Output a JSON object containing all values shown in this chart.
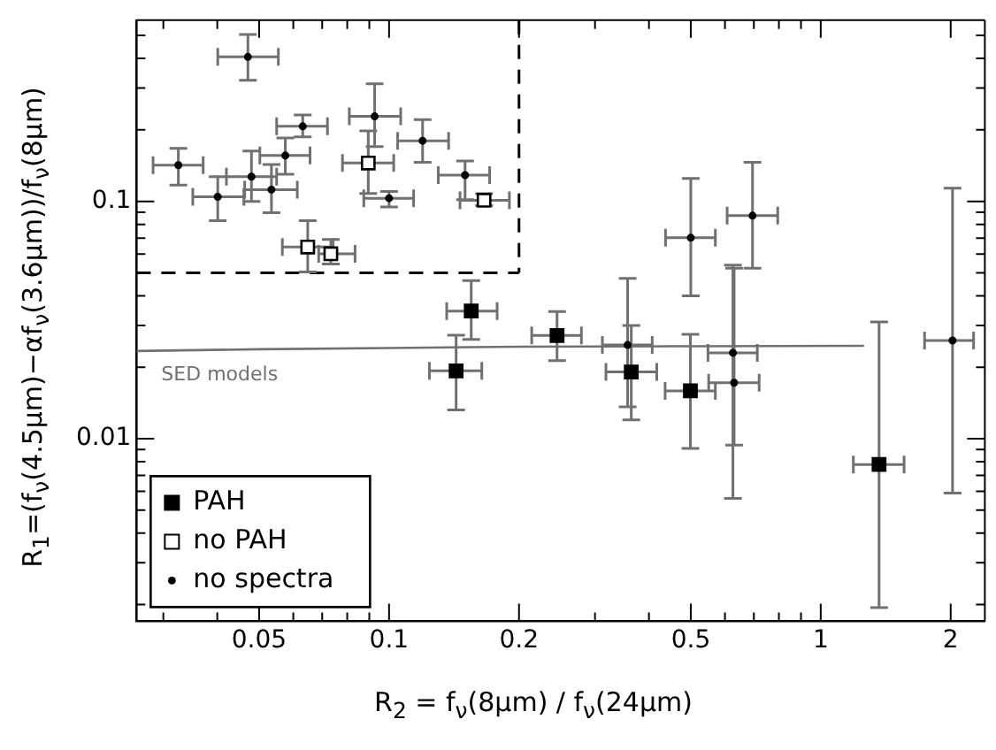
{
  "chart_data": {
    "type": "scatter",
    "xlabel": "R$_{2}$ = f$_{ν}$(8μm) / f$_{ν}$(24μm)",
    "ylabel": "R$_{1}$=(f$_{ν}$(4.5μm)−αf$_{ν}$(3.6μm))/f$_{ν}$(8μm)",
    "log": "xy",
    "xlim": [
      0.026,
      2.4
    ],
    "ylim": [
      0.0017,
      0.58
    ],
    "xticks": [
      {
        "value": 0.03,
        "label": null
      },
      {
        "value": 0.04,
        "label": null
      },
      0.05,
      {
        "value": 0.06,
        "label": null
      },
      {
        "value": 0.07,
        "label": null
      },
      {
        "value": 0.08,
        "label": null
      },
      {
        "value": 0.09,
        "label": null
      },
      0.1,
      0.2,
      {
        "value": 0.3,
        "label": null
      },
      {
        "value": 0.4,
        "label": null
      },
      0.5,
      {
        "value": 0.6,
        "label": null
      },
      {
        "value": 0.7,
        "label": null
      },
      {
        "value": 0.8,
        "label": null
      },
      {
        "value": 0.9,
        "label": null
      },
      1,
      2
    ],
    "yticks": [
      {
        "value": 0.002,
        "label": null
      },
      {
        "value": 0.003,
        "label": null
      },
      {
        "value": 0.004,
        "label": null
      },
      {
        "value": 0.005,
        "label": null
      },
      {
        "value": 0.006,
        "label": null
      },
      {
        "value": 0.007,
        "label": null
      },
      {
        "value": 0.008,
        "label": null
      },
      {
        "value": 0.009,
        "label": null
      },
      0.01,
      {
        "value": 0.02,
        "label": null
      },
      {
        "value": 0.03,
        "label": null
      },
      {
        "value": 0.04,
        "label": null
      },
      {
        "value": 0.05,
        "label": null
      },
      {
        "value": 0.06,
        "label": null
      },
      {
        "value": 0.07,
        "label": null
      },
      {
        "value": 0.08,
        "label": null
      },
      {
        "value": 0.09,
        "label": null
      },
      0.1,
      {
        "value": 0.2,
        "label": null
      },
      {
        "value": 0.3,
        "label": null
      },
      {
        "value": 0.4,
        "label": null
      },
      {
        "value": 0.5,
        "label": null
      }
    ],
    "grid": false,
    "legend": "bottom left",
    "ref_lines": [
      {
        "axis": "x",
        "value": 0.2,
        "color": "#000000",
        "line_style": "dashed"
      },
      {
        "axis": "y",
        "value": 0.05,
        "color": "#000000",
        "line_style": "dashed"
      }
    ],
    "series": [
      {
        "name": "PAH",
        "color": "#000000",
        "marker": "square",
        "x": [
          0.155,
          0.143,
          0.245,
          0.364,
          0.499,
          1.365
        ],
        "values": [
          0.0345,
          0.0193,
          0.0272,
          0.0191,
          0.0159,
          0.00778
        ],
        "errors": [
          [
            0.0262,
            0.0463
          ],
          [
            0.0132,
            0.0273
          ],
          [
            0.0213,
            0.0343
          ],
          [
            0.012,
            0.03
          ],
          [
            0.0091,
            0.0275
          ],
          [
            0.00194,
            0.031
          ]
        ],
        "xerrors": [
          [
            0.136,
            0.178
          ],
          [
            0.124,
            0.164
          ],
          [
            0.214,
            0.279
          ],
          [
            0.318,
            0.417
          ],
          [
            0.436,
            0.57
          ],
          [
            1.19,
            1.56
          ]
        ]
      },
      {
        "name": "no PAH",
        "color": "#ffffff",
        "marker": "square",
        "x": [
          0.0895,
          0.166,
          0.0648,
          0.0733
        ],
        "values": [
          0.145,
          0.101,
          0.0642,
          0.0601
        ],
        "errors": [
          [
            0.108,
            0.198
          ],
          [
            0.096,
            0.1076
          ],
          [
            0.0504,
            0.0829
          ],
          [
            0.0544,
            0.069
          ]
        ],
        "xerrors": [
          [
            0.078,
            0.1025
          ],
          [
            0.146,
            0.19
          ],
          [
            0.0566,
            0.0742
          ],
          [
            0.0687,
            0.0834
          ]
        ]
      },
      {
        "name": "no spectra",
        "color": "#000000",
        "marker": "circle",
        "x": [
          0.0471,
          0.0631,
          0.0926,
          0.1196,
          0.15,
          0.1,
          0.0325,
          0.0401,
          0.048,
          0.0575,
          0.0534,
          0.5,
          0.695,
          0.357,
          0.626,
          0.63,
          2.02
        ],
        "values": [
          0.406,
          0.207,
          0.228,
          0.18,
          0.129,
          0.103,
          0.142,
          0.1045,
          0.127,
          0.156,
          0.112,
          0.0702,
          0.087,
          0.0248,
          0.023,
          0.0172,
          0.0259
        ],
        "errors": [
          [
            0.324,
            0.505
          ],
          [
            0.187,
            0.231
          ],
          [
            0.17,
            0.313
          ],
          [
            0.146,
            0.221
          ],
          [
            0.1017,
            0.148
          ],
          [
            0.0947,
            0.11
          ],
          [
            0.117,
            0.167
          ],
          [
            0.0829,
            0.127
          ],
          [
            0.1,
            0.163
          ],
          [
            0.13,
            0.185
          ],
          [
            0.0896,
            0.143
          ],
          [
            0.04,
            0.125
          ],
          [
            0.0523,
            0.146
          ],
          [
            0.0136,
            0.0473
          ],
          [
            0.0056,
            0.0538
          ],
          [
            0.0094,
            0.0523
          ],
          [
            0.0059,
            0.1137
          ]
        ],
        "xerrors": [
          [
            0.0401,
            0.0554
          ],
          [
            0.0549,
            0.072
          ],
          [
            0.0809,
            0.1064
          ],
          [
            0.1047,
            0.1374
          ],
          [
            0.13,
            0.171
          ],
          [
            0.0874,
            0.114
          ],
          [
            0.0284,
            0.0371
          ],
          [
            0.0351,
            0.0461
          ],
          [
            0.042,
            0.0549
          ],
          [
            0.0502,
            0.0656
          ],
          [
            0.0463,
            0.0613
          ],
          [
            0.437,
            0.57
          ],
          [
            0.607,
            0.795
          ],
          [
            0.312,
            0.407
          ],
          [
            0.548,
            0.713
          ],
          [
            0.55,
            0.72
          ],
          [
            1.74,
            2.26
          ]
        ]
      },
      {
        "name": "SED models",
        "type": "line",
        "color": "#707070",
        "marker": "none",
        "x": [
          0.026,
          0.05,
          0.1,
          0.2,
          0.5,
          1.26
        ],
        "values": [
          0.0234,
          0.0238,
          0.0241,
          0.0244,
          0.0245,
          0.0246
        ]
      }
    ]
  }
}
